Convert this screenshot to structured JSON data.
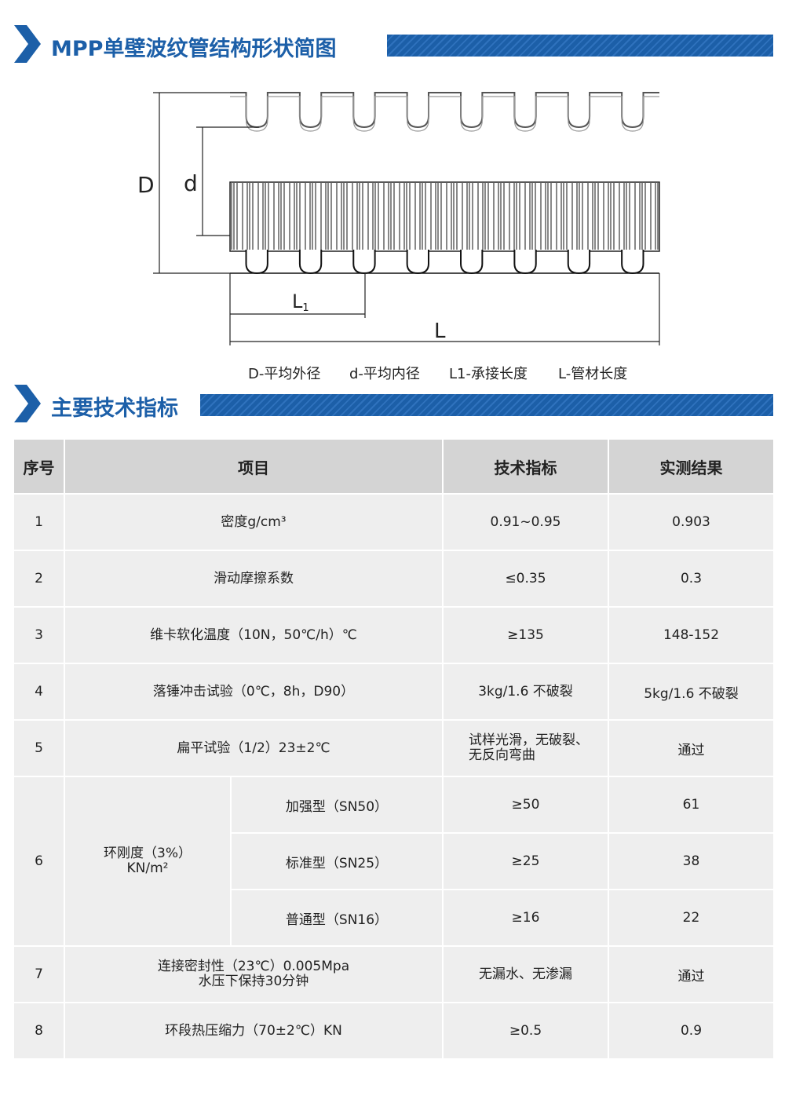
{
  "section1": {
    "title": "MPP单壁波纹管结构形状简图"
  },
  "diagram": {
    "labels": {
      "D": "D",
      "d": "d",
      "L1": {
        "main": "L",
        "sub": "1"
      },
      "L": "L"
    },
    "legend": [
      "D-平均外径",
      "d-平均内径",
      "L1-承接长度",
      "L-管材长度"
    ]
  },
  "section2": {
    "title": "主要技术指标"
  },
  "table": {
    "header": [
      "序号",
      "项目",
      "技术指标",
      "实测结果"
    ],
    "rows": [
      {
        "no": "1",
        "item": [
          "密度g/cm³"
        ],
        "spec": [
          "0.91~0.95"
        ],
        "result": "0.903"
      },
      {
        "no": "2",
        "item": [
          "滑动摩擦系数"
        ],
        "spec": [
          "≤0.35"
        ],
        "result": "0.3"
      },
      {
        "no": "3",
        "item": [
          "维卡软化温度（10N，50℃/h）℃"
        ],
        "spec": [
          "≥135"
        ],
        "result": "148-152"
      },
      {
        "no": "4",
        "item": [
          "落锤冲击试验（0℃，8h，D90）"
        ],
        "spec": [
          "3kg/1.6  不破裂"
        ],
        "result": "5kg/1.6  不破裂"
      },
      {
        "no": "5",
        "item": [
          "扁平试验（1/2）23±2℃"
        ],
        "spec": [
          "试样光滑，无破裂、",
          "无反向弯曲"
        ],
        "result": "通过"
      },
      {
        "no": "6",
        "item": [
          "环刚度（3%）",
          "KN/m²"
        ],
        "sub": [
          {
            "type": "加强型（SN50）",
            "spec": "≥50",
            "result": "61"
          },
          {
            "type": "标准型（SN25）",
            "spec": "≥25",
            "result": "38"
          },
          {
            "type": "普通型（SN16）",
            "spec": "≥16",
            "result": "22"
          }
        ]
      },
      {
        "no": "7",
        "item": [
          "连接密封性（23℃）0.005Mpa",
          "水压下保持30分钟"
        ],
        "spec": [
          "无漏水、无渗漏"
        ],
        "result": "通过"
      },
      {
        "no": "8",
        "item": [
          "环段热压缩力（70±2℃）KN"
        ],
        "spec": [
          "≥0.5"
        ],
        "result": "0.9"
      }
    ]
  }
}
